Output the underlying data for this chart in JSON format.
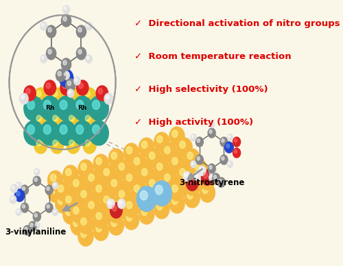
{
  "bg_color": "#faf7e8",
  "text_color_red": "#dd0000",
  "bullet_points": [
    "✓  Directional activation of nitro groups",
    "✓  Room temperature reaction",
    "✓  High selectivity (100%)",
    "✓  High activity (100%)"
  ],
  "label_3nitrostyrene": "3-nitrostyrene",
  "label_3vinylaniline": "3-vinylaniline",
  "slab_orange_light": "#f5b942",
  "slab_orange_dark": "#e08030",
  "rh_color": "#7abde0",
  "water_O_color": "#cc2222",
  "water_H_color": "#e8e8e8",
  "teal_color": "#2a9d8f",
  "yellow_color": "#f0c830",
  "red_color": "#dd2222",
  "blue_color": "#2244cc",
  "grey_color": "#888888",
  "white_color": "#e0e0e0",
  "circle_edge": "#999999"
}
